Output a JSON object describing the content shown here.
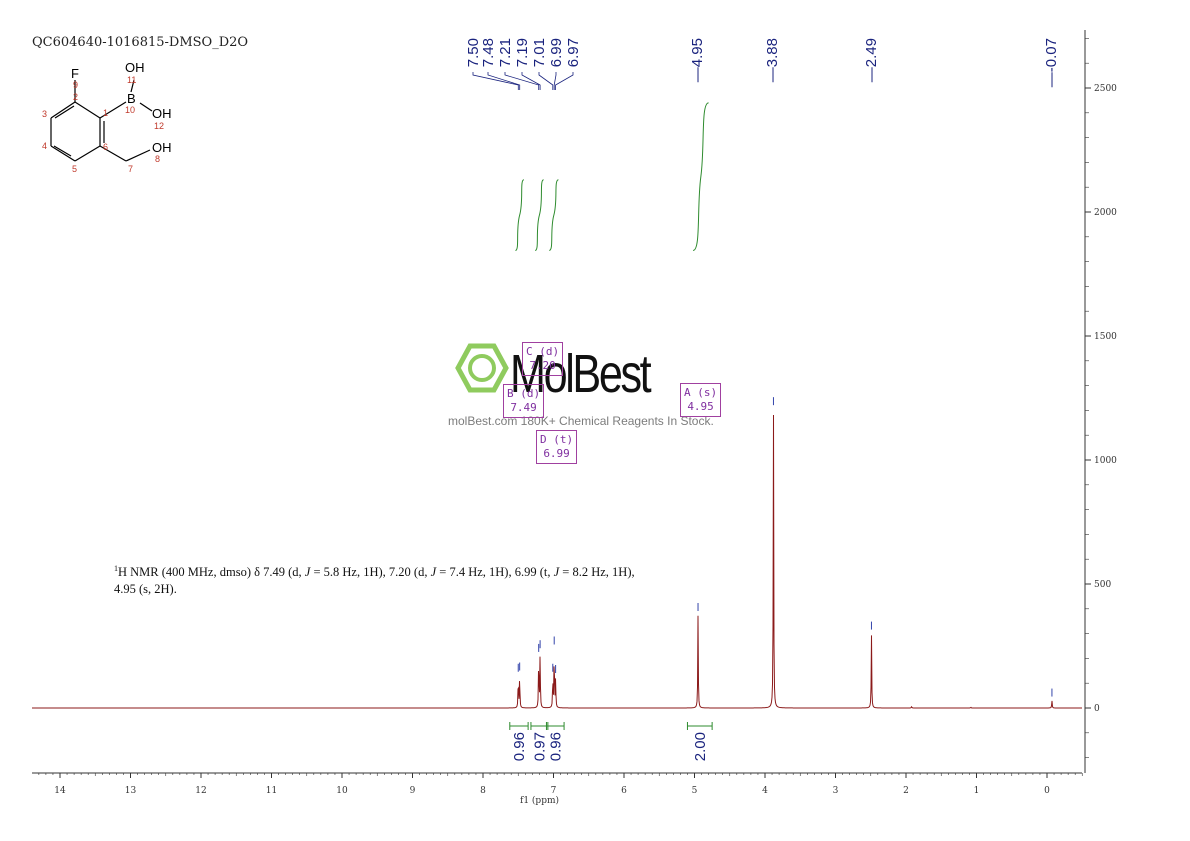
{
  "header": {
    "sample_id": "QC604640-1016815-DMSO_D2O"
  },
  "structure": {
    "atoms": [
      "F",
      "9",
      "2",
      "OH",
      "11",
      "B",
      "10",
      "OH",
      "12",
      "1",
      "3",
      "4",
      "6",
      "OH",
      "8",
      "5",
      "7"
    ]
  },
  "description": {
    "line1_parts": [
      "1",
      "H NMR (400 MHz, dmso) δ 7.49 (d, ",
      "J",
      " = 5.8 Hz, 1H), 7.20 (d, ",
      "J",
      " = 7.4 Hz, 1H), 6.99 (t, ",
      "J",
      " = 8.2 Hz, 1H),"
    ],
    "line2": "4.95 (s, 2H)."
  },
  "watermark": {
    "brand": "MolBest",
    "tagline": "molBest.com 180K+ Chemical Reagents In Stock."
  },
  "multiplets": [
    {
      "label": "C (d)",
      "shift": "7.20"
    },
    {
      "label": "B (d)",
      "shift": "7.49"
    },
    {
      "label": "A (s)",
      "shift": "4.95"
    },
    {
      "label": "D (t)",
      "shift": "6.99"
    }
  ],
  "chart_data": {
    "type": "line",
    "xlabel": "f1 (ppm)",
    "xlim": [
      14.35,
      -0.5
    ],
    "ylim": [
      -500,
      2700
    ],
    "x_ticks": [
      14,
      13,
      12,
      11,
      10,
      9,
      8,
      7,
      6,
      5,
      4,
      3,
      2,
      1,
      0
    ],
    "y_ticks": [
      0,
      500,
      1000,
      1500,
      2000,
      2500
    ],
    "peak_labels": [
      "7.50",
      "7.48",
      "7.21",
      "7.19",
      "7.01",
      "6.99",
      "6.97",
      "4.95",
      "3.88",
      "2.49",
      "-0.07"
    ],
    "peaks": [
      {
        "ppm": 7.5,
        "height": 130
      },
      {
        "ppm": 7.48,
        "height": 135
      },
      {
        "ppm": 7.21,
        "height": 210
      },
      {
        "ppm": 7.19,
        "height": 225
      },
      {
        "ppm": 7.01,
        "height": 130
      },
      {
        "ppm": 6.99,
        "height": 240
      },
      {
        "ppm": 6.97,
        "height": 125
      },
      {
        "ppm": 4.95,
        "height": 375
      },
      {
        "ppm": 3.88,
        "height": 1205
      },
      {
        "ppm": 2.49,
        "height": 300
      },
      {
        "ppm": 1.92,
        "height": 6
      },
      {
        "ppm": 1.08,
        "height": 3
      },
      {
        "ppm": -0.07,
        "height": 30
      }
    ],
    "integrals": [
      {
        "from": 7.62,
        "to": 7.36,
        "value": "0.96"
      },
      {
        "from": 7.32,
        "to": 7.08,
        "value": "0.97"
      },
      {
        "from": 7.1,
        "to": 6.85,
        "value": "0.96"
      },
      {
        "from": 5.1,
        "to": 4.75,
        "value": "2.00"
      }
    ],
    "integral_curves": [
      {
        "from": 7.54,
        "to": 7.42,
        "y_start": 1845,
        "y_end": 2130
      },
      {
        "from": 7.26,
        "to": 7.14,
        "y_start": 1845,
        "y_end": 2130
      },
      {
        "from": 7.06,
        "to": 6.93,
        "y_start": 1845,
        "y_end": 2130
      },
      {
        "from": 5.02,
        "to": 4.8,
        "y_start": 1845,
        "y_end": 2440
      }
    ],
    "colors": {
      "spectrum": "#8b1a1a",
      "peak_labels": "#1a237e",
      "integrals": "#2e8b2e",
      "multiplet_boxes": "#a040a0",
      "axis": "#333333"
    }
  }
}
